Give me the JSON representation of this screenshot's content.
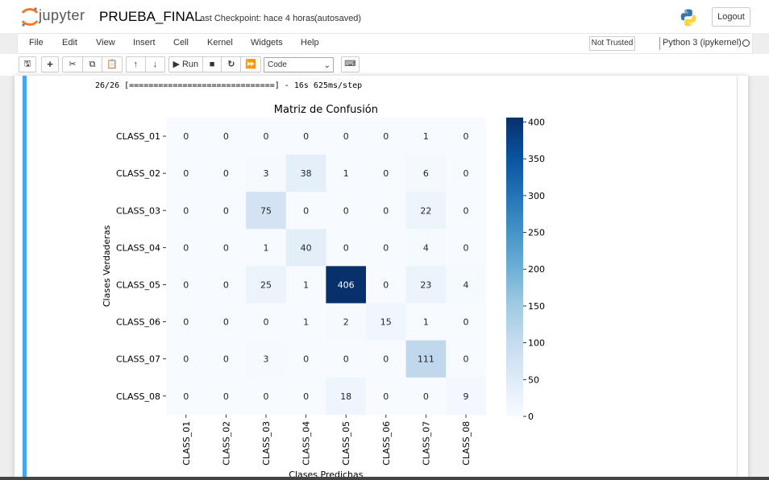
{
  "header": {
    "logo_text": "jupyter",
    "notebook_title": "PRUEBA_FINAL",
    "checkpoint": "Last Checkpoint: hace 4 horas",
    "autosaved": "(autosaved)",
    "logout_label": "Logout"
  },
  "menu": {
    "items": [
      "File",
      "Edit",
      "View",
      "Insert",
      "Cell",
      "Kernel",
      "Widgets",
      "Help"
    ],
    "trust_status": "Not Trusted",
    "kernel_name": "Python 3 (ipykernel)"
  },
  "toolbar": {
    "run_label": "Run",
    "cell_type": "Code",
    "icons": [
      "save-icon",
      "plus-icon",
      "cut-icon",
      "copy-icon",
      "paste-icon",
      "arrow-up-icon",
      "arrow-down-icon",
      "run-icon",
      "stop-icon",
      "restart-icon",
      "fast-forward-icon",
      "keyboard-icon"
    ]
  },
  "output": {
    "line1": "26/26 [==============================] - 16s 625ms/step"
  },
  "chart_data": {
    "type": "heatmap",
    "title": "Matriz de Confusión",
    "xlabel": "Clases Predichas",
    "ylabel": "Clases Verdaderas",
    "row_labels": [
      "CLASS_01",
      "CLASS_02",
      "CLASS_03",
      "CLASS_04",
      "CLASS_05",
      "CLASS_06",
      "CLASS_07",
      "CLASS_08"
    ],
    "col_labels": [
      "CLASS_01",
      "CLASS_02",
      "CLASS_03",
      "CLASS_04",
      "CLASS_05",
      "CLASS_06",
      "CLASS_07",
      "CLASS_08"
    ],
    "values": [
      [
        0,
        0,
        0,
        0,
        0,
        0,
        1,
        0
      ],
      [
        0,
        0,
        3,
        38,
        1,
        0,
        6,
        0
      ],
      [
        0,
        0,
        75,
        0,
        0,
        0,
        22,
        0
      ],
      [
        0,
        0,
        1,
        40,
        0,
        0,
        4,
        0
      ],
      [
        0,
        0,
        25,
        1,
        406,
        0,
        23,
        4
      ],
      [
        0,
        0,
        0,
        1,
        2,
        15,
        1,
        0
      ],
      [
        0,
        0,
        3,
        0,
        0,
        0,
        111,
        0
      ],
      [
        0,
        0,
        0,
        0,
        18,
        0,
        0,
        9
      ]
    ],
    "colorbar_ticks": [
      0,
      50,
      100,
      150,
      200,
      250,
      300,
      350,
      400
    ],
    "colorbar_range": [
      0,
      406
    ],
    "colormap": "Blues",
    "colors": {
      "low": "#f7fbff",
      "high": "#08306b"
    }
  }
}
